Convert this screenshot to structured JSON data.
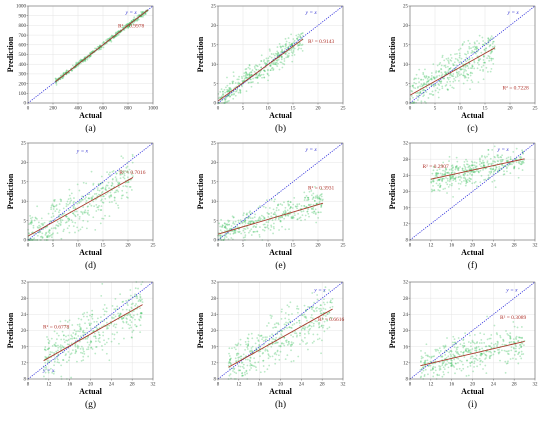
{
  "chart_data": [
    {
      "type": "scatter",
      "panel_label": "(a)",
      "xlabel": "Actual",
      "ylabel": "Prediction",
      "xlim": [
        0,
        1000
      ],
      "ylim": [
        0,
        1000
      ],
      "xticks": [
        "0",
        "200",
        "400",
        "600",
        "800",
        "1000"
      ],
      "yticks": [
        "0",
        "100",
        "200",
        "300",
        "400",
        "500",
        "600",
        "700",
        "800",
        "900",
        "1000"
      ],
      "ref_label": "y = x",
      "r2_label": "R² = 0.9978",
      "fit": {
        "slope": 1.0,
        "intercept": 0
      },
      "points": {
        "x_range": [
          220,
          960
        ],
        "spread": 22
      }
    },
    {
      "type": "scatter",
      "panel_label": "(b)",
      "xlabel": "Actual",
      "ylabel": "Prediction",
      "xlim": [
        0,
        25
      ],
      "ylim": [
        0,
        25
      ],
      "xticks": [
        "0",
        "5",
        "10",
        "15",
        "20",
        "25"
      ],
      "yticks": [
        "0",
        "5",
        "10",
        "15",
        "20",
        "25"
      ],
      "ref_label": "y = x",
      "r2_label": "R² = 0.9143",
      "fit": {
        "slope": 0.94,
        "intercept": 0.5
      },
      "points": {
        "x_range": [
          0,
          17
        ],
        "spread": 2.6
      }
    },
    {
      "type": "scatter",
      "panel_label": "(c)",
      "xlabel": "Actual",
      "ylabel": "Prediction",
      "xlim": [
        0,
        25
      ],
      "ylim": [
        0,
        25
      ],
      "xticks": [
        "0",
        "5",
        "10",
        "15",
        "20",
        "25"
      ],
      "yticks": [
        "0",
        "5",
        "10",
        "15",
        "20",
        "25"
      ],
      "ref_label": "y = x",
      "r2_label": "R² = 0.7228",
      "fit": {
        "slope": 0.72,
        "intercept": 2.0
      },
      "points": {
        "x_range": [
          0,
          17
        ],
        "spread": 4.5
      }
    },
    {
      "type": "scatter",
      "panel_label": "(d)",
      "xlabel": "Actual",
      "ylabel": "Prediction",
      "xlim": [
        0,
        25
      ],
      "ylim": [
        0,
        25
      ],
      "xticks": [
        "0",
        "5",
        "10",
        "15",
        "20",
        "25"
      ],
      "yticks": [
        "0",
        "5",
        "10",
        "15",
        "20",
        "25"
      ],
      "ref_label": "y = x",
      "r2_label": "R² = 0.7016",
      "fit": {
        "slope": 0.72,
        "intercept": 1.0
      },
      "points": {
        "x_range": [
          0,
          21
        ],
        "spread": 5.0
      }
    },
    {
      "type": "scatter",
      "panel_label": "(e)",
      "xlabel": "Actual",
      "ylabel": "Prediction",
      "xlim": [
        0,
        25
      ],
      "ylim": [
        0,
        25
      ],
      "xticks": [
        "0",
        "5",
        "10",
        "15",
        "20",
        "25"
      ],
      "yticks": [
        "0",
        "5",
        "10",
        "15",
        "20",
        "25"
      ],
      "ref_label": "y = x",
      "r2_label": "R² = 0.3931",
      "fit": {
        "slope": 0.38,
        "intercept": 1.5
      },
      "points": {
        "x_range": [
          0,
          21
        ],
        "spread": 3.5
      }
    },
    {
      "type": "scatter",
      "panel_label": "(f)",
      "xlabel": "Actual",
      "ylabel": "Prediction",
      "xlim": [
        8,
        32
      ],
      "ylim": [
        8,
        32
      ],
      "xticks": [
        "8",
        "12",
        "16",
        "20",
        "24",
        "28",
        "32"
      ],
      "yticks": [
        "8",
        "12",
        "16",
        "20",
        "24",
        "28",
        "32"
      ],
      "ref_label": "y = x",
      "r2_label": "R² = 0.2907",
      "fit": {
        "slope": 0.28,
        "intercept": 19.7
      },
      "points": {
        "x_range": [
          12,
          30
        ],
        "spread": 3.0
      }
    },
    {
      "type": "scatter",
      "panel_label": "(g)",
      "xlabel": "Actual",
      "ylabel": "Prediction",
      "xlim": [
        8,
        32
      ],
      "ylim": [
        8,
        32
      ],
      "xticks": [
        "8",
        "12",
        "16",
        "20",
        "24",
        "28",
        "32"
      ],
      "yticks": [
        "8",
        "12",
        "16",
        "20",
        "24",
        "28",
        "32"
      ],
      "ref_label": "y = x",
      "r2_label": "R² = 0.6778",
      "fit": {
        "slope": 0.73,
        "intercept": 4.5
      },
      "points": {
        "x_range": [
          11,
          30
        ],
        "spread": 5.5
      }
    },
    {
      "type": "scatter",
      "panel_label": "(h)",
      "xlabel": "Actual",
      "ylabel": "Prediction",
      "xlim": [
        8,
        32
      ],
      "ylim": [
        8,
        32
      ],
      "xticks": [
        "8",
        "12",
        "16",
        "20",
        "24",
        "28",
        "32"
      ],
      "yticks": [
        "8",
        "12",
        "16",
        "20",
        "24",
        "28",
        "32"
      ],
      "ref_label": "y = x",
      "r2_label": "R² = 0.6616",
      "fit": {
        "slope": 0.72,
        "intercept": 3.7
      },
      "points": {
        "x_range": [
          10,
          30
        ],
        "spread": 5.5
      }
    },
    {
      "type": "scatter",
      "panel_label": "(i)",
      "xlabel": "Actual",
      "ylabel": "Prediction",
      "xlim": [
        8,
        32
      ],
      "ylim": [
        8,
        32
      ],
      "xticks": [
        "8",
        "12",
        "16",
        "20",
        "24",
        "28",
        "32"
      ],
      "yticks": [
        "8",
        "12",
        "16",
        "20",
        "24",
        "28",
        "32"
      ],
      "ref_label": "y = x",
      "r2_label": "R² = 0.3089",
      "fit": {
        "slope": 0.3,
        "intercept": 8.3
      },
      "points": {
        "x_range": [
          10,
          30
        ],
        "spread": 4.0
      }
    }
  ],
  "colors": {
    "points": "#3cbf5f",
    "fit_line": "#a83a2c",
    "reference_line": "#2b2bdb",
    "grid": "#e4e4e4",
    "axis": "#666666"
  }
}
